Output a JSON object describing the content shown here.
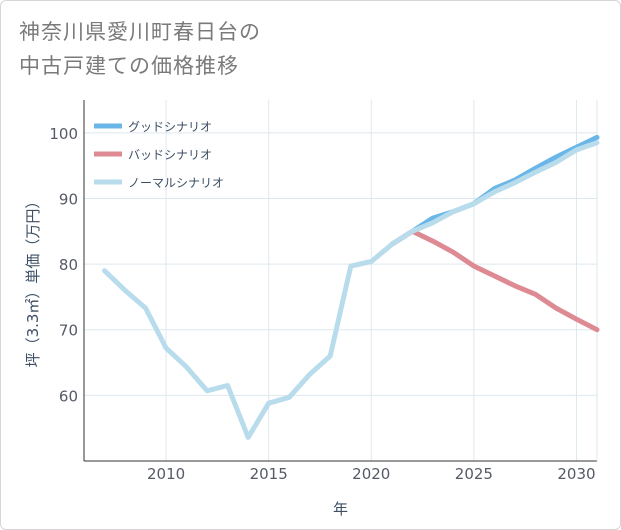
{
  "title_lines": [
    "神奈川県愛川町春日台の",
    "中古戸建ての価格推移"
  ],
  "chart_data": {
    "type": "line",
    "title": "神奈川県愛川町春日台の中古戸建ての価格推移",
    "xlabel": "年",
    "ylabel": "坪（3.3㎡）単価（万円）",
    "xlim": [
      2006,
      2031
    ],
    "ylim": [
      50,
      105
    ],
    "xticks": [
      2010,
      2015,
      2020,
      2025,
      2030
    ],
    "yticks": [
      60,
      70,
      80,
      90,
      100
    ],
    "grid": true,
    "legend_position": "top-left",
    "series": [
      {
        "name": "グッドシナリオ",
        "color": "#6bb6e8",
        "x": [
          2021,
          2022,
          2023,
          2024,
          2025,
          2026,
          2027,
          2028,
          2029,
          2030,
          2031
        ],
        "y": [
          83,
          85,
          87,
          88,
          89.2,
          91.5,
          92.8,
          94.6,
          96.3,
          97.8,
          99.3
        ]
      },
      {
        "name": "バッドシナリオ",
        "color": "#de8a93",
        "x": [
          2021,
          2022,
          2023,
          2024,
          2025,
          2026,
          2027,
          2028,
          2029,
          2030,
          2031
        ],
        "y": [
          83,
          85,
          83.5,
          81.8,
          79.7,
          78.2,
          76.7,
          75.4,
          73.3,
          71.6,
          70
        ]
      },
      {
        "name": "ノーマルシナリオ",
        "color": "#b9dcec",
        "x": [
          2007,
          2008,
          2009,
          2010,
          2011,
          2012,
          2013,
          2014,
          2015,
          2016,
          2017,
          2018,
          2019,
          2020,
          2021,
          2022,
          2023,
          2024,
          2025,
          2026,
          2027,
          2028,
          2029,
          2030,
          2031
        ],
        "y": [
          79,
          76,
          73.3,
          67.2,
          64.3,
          60.7,
          61.5,
          53.6,
          58.8,
          59.7,
          63.2,
          66,
          79.7,
          80.4,
          83,
          85,
          86.3,
          88,
          89.2,
          91,
          92.4,
          94,
          95.5,
          97.4,
          98.5
        ]
      }
    ]
  }
}
